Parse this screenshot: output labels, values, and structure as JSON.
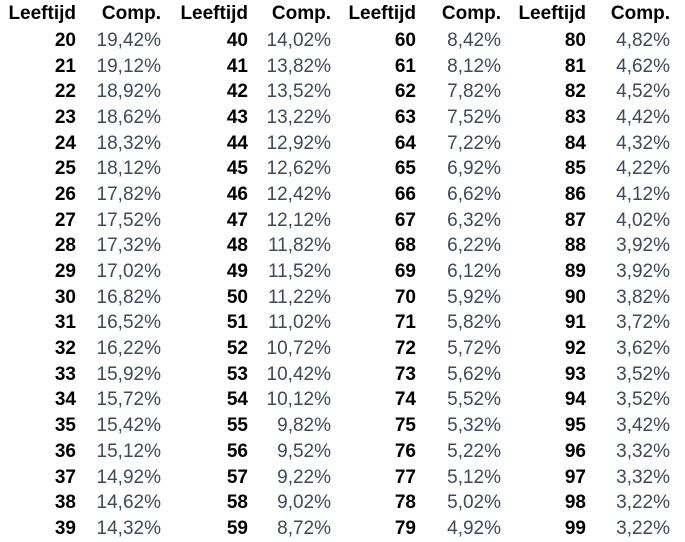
{
  "headers": {
    "age": "Leeftijd",
    "comp": "Comp."
  },
  "groups": [
    {
      "rows": [
        {
          "age": "20",
          "comp": "19,42%"
        },
        {
          "age": "21",
          "comp": "19,12%"
        },
        {
          "age": "22",
          "comp": "18,92%"
        },
        {
          "age": "23",
          "comp": "18,62%"
        },
        {
          "age": "24",
          "comp": "18,32%"
        },
        {
          "age": "25",
          "comp": "18,12%"
        },
        {
          "age": "26",
          "comp": "17,82%"
        },
        {
          "age": "27",
          "comp": "17,52%"
        },
        {
          "age": "28",
          "comp": "17,32%"
        },
        {
          "age": "29",
          "comp": "17,02%"
        },
        {
          "age": "30",
          "comp": "16,82%"
        },
        {
          "age": "31",
          "comp": "16,52%"
        },
        {
          "age": "32",
          "comp": "16,22%"
        },
        {
          "age": "33",
          "comp": "15,92%"
        },
        {
          "age": "34",
          "comp": "15,72%"
        },
        {
          "age": "35",
          "comp": "15,42%"
        },
        {
          "age": "36",
          "comp": "15,12%"
        },
        {
          "age": "37",
          "comp": "14,92%"
        },
        {
          "age": "38",
          "comp": "14,62%"
        },
        {
          "age": "39",
          "comp": "14,32%"
        }
      ]
    },
    {
      "rows": [
        {
          "age": "40",
          "comp": "14,02%"
        },
        {
          "age": "41",
          "comp": "13,82%"
        },
        {
          "age": "42",
          "comp": "13,52%"
        },
        {
          "age": "43",
          "comp": "13,22%"
        },
        {
          "age": "44",
          "comp": "12,92%"
        },
        {
          "age": "45",
          "comp": "12,62%"
        },
        {
          "age": "46",
          "comp": "12,42%"
        },
        {
          "age": "47",
          "comp": "12,12%"
        },
        {
          "age": "48",
          "comp": "11,82%"
        },
        {
          "age": "49",
          "comp": "11,52%"
        },
        {
          "age": "50",
          "comp": "11,22%"
        },
        {
          "age": "51",
          "comp": "11,02%"
        },
        {
          "age": "52",
          "comp": "10,72%"
        },
        {
          "age": "53",
          "comp": "10,42%"
        },
        {
          "age": "54",
          "comp": "10,12%"
        },
        {
          "age": "55",
          "comp": "9,82%"
        },
        {
          "age": "56",
          "comp": "9,52%"
        },
        {
          "age": "57",
          "comp": "9,22%"
        },
        {
          "age": "58",
          "comp": "9,02%"
        },
        {
          "age": "59",
          "comp": "8,72%"
        }
      ]
    },
    {
      "rows": [
        {
          "age": "60",
          "comp": "8,42%"
        },
        {
          "age": "61",
          "comp": "8,12%"
        },
        {
          "age": "62",
          "comp": "7,82%"
        },
        {
          "age": "63",
          "comp": "7,52%"
        },
        {
          "age": "64",
          "comp": "7,22%"
        },
        {
          "age": "65",
          "comp": "6,92%"
        },
        {
          "age": "66",
          "comp": "6,62%"
        },
        {
          "age": "67",
          "comp": "6,32%"
        },
        {
          "age": "68",
          "comp": "6,22%"
        },
        {
          "age": "69",
          "comp": "6,12%"
        },
        {
          "age": "70",
          "comp": "5,92%"
        },
        {
          "age": "71",
          "comp": "5,82%"
        },
        {
          "age": "72",
          "comp": "5,72%"
        },
        {
          "age": "73",
          "comp": "5,62%"
        },
        {
          "age": "74",
          "comp": "5,52%"
        },
        {
          "age": "75",
          "comp": "5,32%"
        },
        {
          "age": "76",
          "comp": "5,22%"
        },
        {
          "age": "77",
          "comp": "5,12%"
        },
        {
          "age": "78",
          "comp": "5,02%"
        },
        {
          "age": "79",
          "comp": "4,92%"
        }
      ]
    },
    {
      "rows": [
        {
          "age": "80",
          "comp": "4,82%"
        },
        {
          "age": "81",
          "comp": "4,62%"
        },
        {
          "age": "82",
          "comp": "4,52%"
        },
        {
          "age": "83",
          "comp": "4,42%"
        },
        {
          "age": "84",
          "comp": "4,32%"
        },
        {
          "age": "85",
          "comp": "4,22%"
        },
        {
          "age": "86",
          "comp": "4,12%"
        },
        {
          "age": "87",
          "comp": "4,02%"
        },
        {
          "age": "88",
          "comp": "3,92%"
        },
        {
          "age": "89",
          "comp": "3,92%"
        },
        {
          "age": "90",
          "comp": "3,82%"
        },
        {
          "age": "91",
          "comp": "3,72%"
        },
        {
          "age": "92",
          "comp": "3,62%"
        },
        {
          "age": "93",
          "comp": "3,52%"
        },
        {
          "age": "94",
          "comp": "3,52%"
        },
        {
          "age": "95",
          "comp": "3,42%"
        },
        {
          "age": "96",
          "comp": "3,32%"
        },
        {
          "age": "97",
          "comp": "3,32%"
        },
        {
          "age": "98",
          "comp": "3,22%"
        },
        {
          "age": "99",
          "comp": "3,22%"
        }
      ]
    }
  ]
}
